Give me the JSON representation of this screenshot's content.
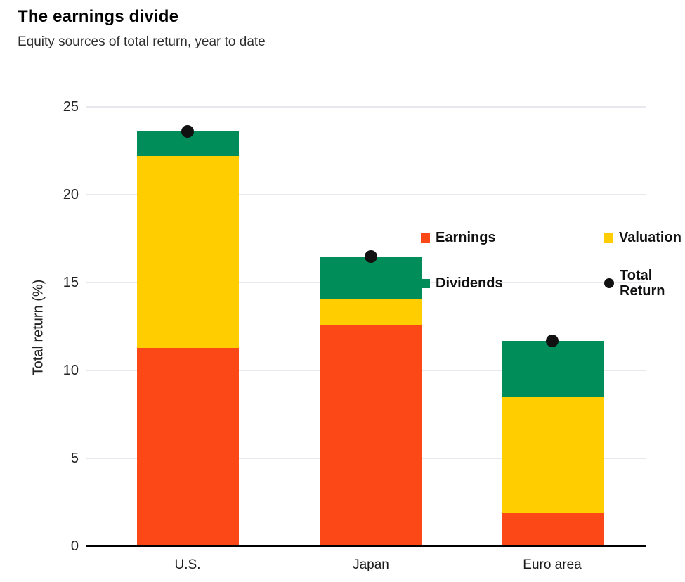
{
  "header": {
    "title": "The earnings divide",
    "subtitle": "Equity sources of total return, year to date"
  },
  "colors": {
    "earnings": "#FB4816",
    "valuation": "#FFCD00",
    "dividends": "#008D5A",
    "total_return": "#111111",
    "gridline": "#E8E8EE",
    "axis_line": "#000000"
  },
  "legend": {
    "items": [
      {
        "id": "earnings",
        "label": "Earnings",
        "marker": "square",
        "color": "#FB4816"
      },
      {
        "id": "valuation",
        "label": "Valuation",
        "marker": "square",
        "color": "#FFCD00"
      },
      {
        "id": "dividends",
        "label": "Dividends",
        "marker": "square",
        "color": "#008D5A"
      },
      {
        "id": "total-return",
        "label": "Total Return",
        "marker": "circle",
        "color": "#111111"
      }
    ]
  },
  "chart_data": {
    "type": "bar",
    "stacked": true,
    "title": "The earnings divide",
    "subtitle": "Equity sources of total return, year to date",
    "ylabel": "Total return (%)",
    "xlabel": "",
    "ylim": [
      0,
      25
    ],
    "yticks": [
      0,
      5,
      10,
      15,
      20,
      25
    ],
    "grid": "horizontal",
    "legend_position": "top-right-inside",
    "categories": [
      "U.S.",
      "Japan",
      "Euro area"
    ],
    "series": [
      {
        "name": "Earnings",
        "type": "bar-segment",
        "color": "#FB4816",
        "values": [
          11.3,
          12.6,
          1.9
        ]
      },
      {
        "name": "Valuation",
        "type": "bar-segment",
        "color": "#FFCD00",
        "values": [
          10.9,
          1.5,
          6.6
        ]
      },
      {
        "name": "Dividends",
        "type": "bar-segment",
        "color": "#008D5A",
        "values": [
          1.4,
          2.4,
          3.2
        ]
      },
      {
        "name": "Total Return",
        "type": "point",
        "color": "#111111",
        "values": [
          23.6,
          16.5,
          11.7
        ]
      }
    ]
  }
}
